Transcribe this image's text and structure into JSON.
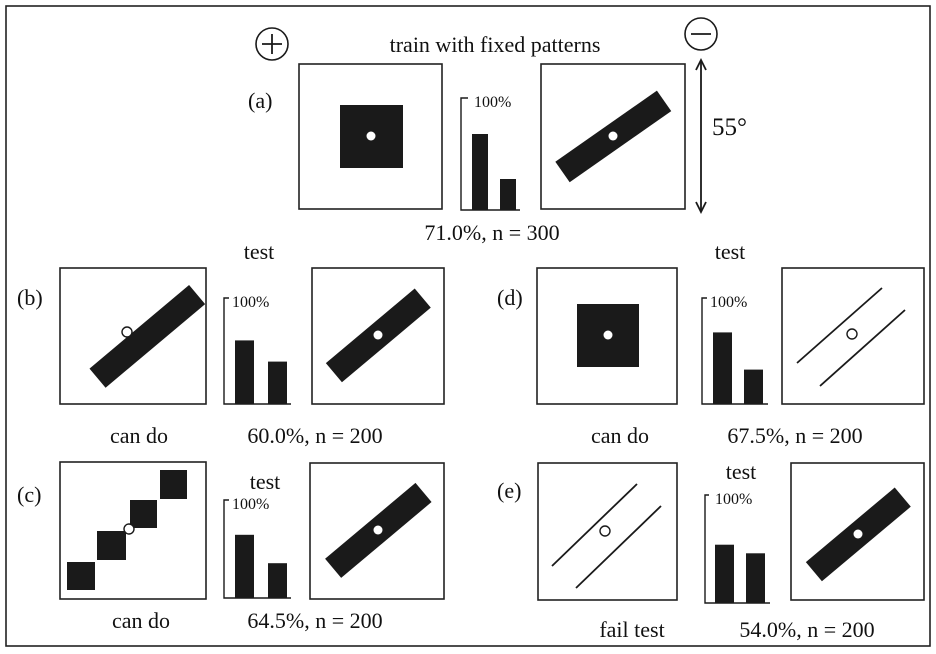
{
  "header": {
    "title": "train with fixed patterns",
    "plus_symbol": "+",
    "minus_symbol": "−",
    "angle_label": "55°"
  },
  "panels": {
    "a": {
      "label": "(a)",
      "bar_max_label": "100%",
      "result": "71.0%, n = 300",
      "bars": [
        0.71,
        0.29
      ]
    },
    "b": {
      "label": "(b)",
      "test_label": "test",
      "bar_max_label": "100%",
      "caption": "can do",
      "result": "60.0%, n = 200",
      "bars": [
        0.6,
        0.4
      ]
    },
    "c": {
      "label": "(c)",
      "test_label": "test",
      "bar_max_label": "100%",
      "caption": "can do",
      "result": "64.5%, n = 200",
      "bars": [
        0.645,
        0.355
      ]
    },
    "d": {
      "label": "(d)",
      "test_label": "test",
      "bar_max_label": "100%",
      "caption": "can do",
      "result": "67.5%, n = 200",
      "bars": [
        0.675,
        0.325
      ]
    },
    "e": {
      "label": "(e)",
      "test_label": "test",
      "bar_max_label": "100%",
      "caption": "fail test",
      "result": "54.0%, n = 200",
      "bars": [
        0.54,
        0.46
      ]
    }
  }
}
